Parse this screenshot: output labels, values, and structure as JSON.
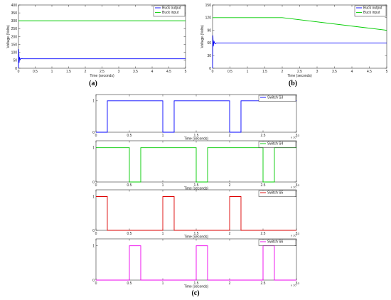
{
  "chart_data": [
    {
      "panel": "a",
      "type": "line",
      "caption": "(a)",
      "xlabel": "Time (seconds)",
      "ylabel": "Voltage (Volts)",
      "xlim": [
        0,
        5
      ],
      "ylim": [
        0,
        400
      ],
      "xticks": [
        0,
        0.5,
        1,
        1.5,
        2,
        2.5,
        3,
        3.5,
        4,
        4.5,
        5
      ],
      "yticks": [
        0,
        50,
        100,
        150,
        200,
        250,
        300,
        350,
        400
      ],
      "legend_position": "top-right",
      "grid": false,
      "series": [
        {
          "name": "Buck output",
          "color": "#0000ff",
          "x": [
            0,
            0.01,
            0.02,
            0.03,
            0.05,
            0.08,
            0.12,
            5
          ],
          "y": [
            0,
            120,
            35,
            70,
            55,
            62,
            60,
            60
          ]
        },
        {
          "name": "Buck input",
          "color": "#00cc00",
          "x": [
            0,
            5
          ],
          "y": [
            300,
            300
          ]
        }
      ]
    },
    {
      "panel": "b",
      "type": "line",
      "caption": "(b)",
      "xlabel": "Time (seconds)",
      "ylabel": "Voltage (Volts)",
      "xlim": [
        0,
        5
      ],
      "ylim": [
        0,
        150
      ],
      "xticks": [
        0,
        0.5,
        1,
        1.5,
        2,
        2.5,
        3,
        3.5,
        4,
        4.5,
        5
      ],
      "yticks": [
        0,
        30,
        60,
        90,
        120,
        150
      ],
      "legend_position": "top-right",
      "grid": false,
      "series": [
        {
          "name": "Buck output",
          "color": "#0000ff",
          "x": [
            0,
            0.01,
            0.02,
            0.04,
            0.07,
            0.12,
            5
          ],
          "y": [
            0,
            78,
            52,
            64,
            58,
            60,
            60
          ]
        },
        {
          "name": "Buck input",
          "color": "#00cc00",
          "x": [
            0,
            2,
            5
          ],
          "y": [
            120,
            120,
            90
          ]
        }
      ]
    },
    {
      "panel": "c1",
      "type": "line",
      "xlabel": "Time (seconds)",
      "xlim": [
        0,
        3
      ],
      "ylim": [
        0,
        1.2
      ],
      "xticks": [
        0,
        0.5,
        1,
        1.5,
        2,
        2.5,
        3
      ],
      "yticks": [
        0,
        1
      ],
      "x_multiplier": "x 10",
      "x_exponent": "-3",
      "legend_position": "top-right",
      "series": [
        {
          "name": "Switch S3",
          "color": "#0000ff",
          "x": [
            0,
            0.17,
            0.17,
            1.0,
            1.0,
            1.17,
            1.17,
            2.0,
            2.0,
            2.17,
            2.17,
            3
          ],
          "y": [
            0,
            0,
            1,
            1,
            0,
            0,
            1,
            1,
            0,
            0,
            1,
            1
          ]
        }
      ]
    },
    {
      "panel": "c2",
      "type": "line",
      "xlabel": "Time (seconds)",
      "xlim": [
        0,
        3
      ],
      "ylim": [
        0,
        1.2
      ],
      "xticks": [
        0,
        0.5,
        1,
        1.5,
        2,
        2.5,
        3
      ],
      "yticks": [
        0,
        1
      ],
      "x_multiplier": "x 10",
      "x_exponent": "-3",
      "legend_position": "top-right",
      "series": [
        {
          "name": "Switch S4",
          "color": "#00cc00",
          "x": [
            0,
            0.5,
            0.5,
            0.67,
            0.67,
            1.5,
            1.5,
            1.67,
            1.67,
            2.5,
            2.5,
            2.67,
            2.67,
            3
          ],
          "y": [
            1,
            1,
            0,
            0,
            1,
            1,
            0,
            0,
            1,
            1,
            0,
            0,
            1,
            1
          ]
        }
      ]
    },
    {
      "panel": "c3",
      "type": "line",
      "xlabel": "Time (seconds)",
      "xlim": [
        0,
        3
      ],
      "ylim": [
        0,
        1.2
      ],
      "xticks": [
        0,
        0.5,
        1,
        1.5,
        2,
        2.5,
        3
      ],
      "yticks": [
        0,
        1
      ],
      "x_multiplier": "x 10",
      "x_exponent": "-3",
      "legend_position": "top-right",
      "series": [
        {
          "name": "Switch S5",
          "color": "#dd0000",
          "x": [
            0,
            0.17,
            0.17,
            1.0,
            1.0,
            1.17,
            1.17,
            2.0,
            2.0,
            2.17,
            2.17,
            3
          ],
          "y": [
            1,
            1,
            0,
            0,
            1,
            1,
            0,
            0,
            1,
            1,
            0,
            0
          ]
        }
      ]
    },
    {
      "panel": "c4",
      "type": "line",
      "xlabel": "Time (seconds)",
      "xlim": [
        0,
        3
      ],
      "ylim": [
        0,
        1.2
      ],
      "xticks": [
        0,
        0.5,
        1,
        1.5,
        2,
        2.5,
        3
      ],
      "yticks": [
        0,
        1
      ],
      "x_multiplier": "x 10",
      "x_exponent": "-3",
      "legend_position": "top-right",
      "series": [
        {
          "name": "Switch S6",
          "color": "#ee00ee",
          "x": [
            0,
            0.5,
            0.5,
            0.67,
            0.67,
            1.5,
            1.5,
            1.67,
            1.67,
            2.5,
            2.5,
            2.67,
            2.67,
            3
          ],
          "y": [
            0,
            0,
            1,
            1,
            0,
            0,
            1,
            1,
            0,
            0,
            1,
            1,
            0,
            0
          ]
        }
      ]
    }
  ],
  "captions": {
    "c": "(c)"
  }
}
